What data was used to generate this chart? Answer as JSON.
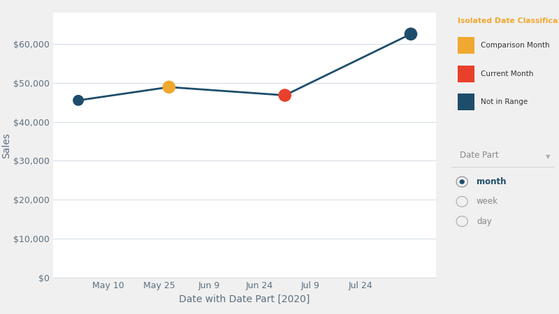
{
  "xlabel": "Date with Date Part [2020]",
  "ylabel": "Sales",
  "x_labels": [
    "May 10",
    "May 25",
    "Jun 9",
    "Jun 24",
    "Jul 9",
    "Jul 24"
  ],
  "x_tick_positions": [
    1,
    2,
    3,
    4,
    5,
    6
  ],
  "line_x": [
    0.4,
    2.2,
    4.5,
    7.0
  ],
  "line_y": [
    45500,
    48900,
    46800,
    62500
  ],
  "point_colors": [
    "#1e4d6b",
    "#f0a830",
    "#e8402a",
    "#1e4d6b"
  ],
  "point_sizes": [
    130,
    180,
    180,
    180
  ],
  "line_color": "#1e4d6b",
  "ylim": [
    0,
    68000
  ],
  "yticks": [
    0,
    10000,
    20000,
    30000,
    40000,
    50000,
    60000
  ],
  "ytick_labels": [
    "$0",
    "$10,000",
    "$20,000",
    "$30,000",
    "$40,000",
    "$50,000",
    "$60,000"
  ],
  "bg_color": "#f0f0f0",
  "plot_bg_color": "#ffffff",
  "grid_color": "#d8dde6",
  "legend_title": "Isolated Date Classifica...",
  "legend_items": [
    {
      "label": "Comparison Month",
      "color": "#f0a830"
    },
    {
      "label": "Current Month",
      "color": "#e8402a"
    },
    {
      "label": "Not in Range",
      "color": "#1e4d6b"
    }
  ],
  "legend_title_color": "#f0a830",
  "filter_title": "Date Part",
  "filter_items": [
    "month",
    "week",
    "day"
  ],
  "filter_selected": "month",
  "tick_color": "#5c7080",
  "label_fontsize": 10,
  "tick_fontsize": 9,
  "right_panel_bg": "#f5f5f5",
  "right_panel_border": "#cccccc"
}
